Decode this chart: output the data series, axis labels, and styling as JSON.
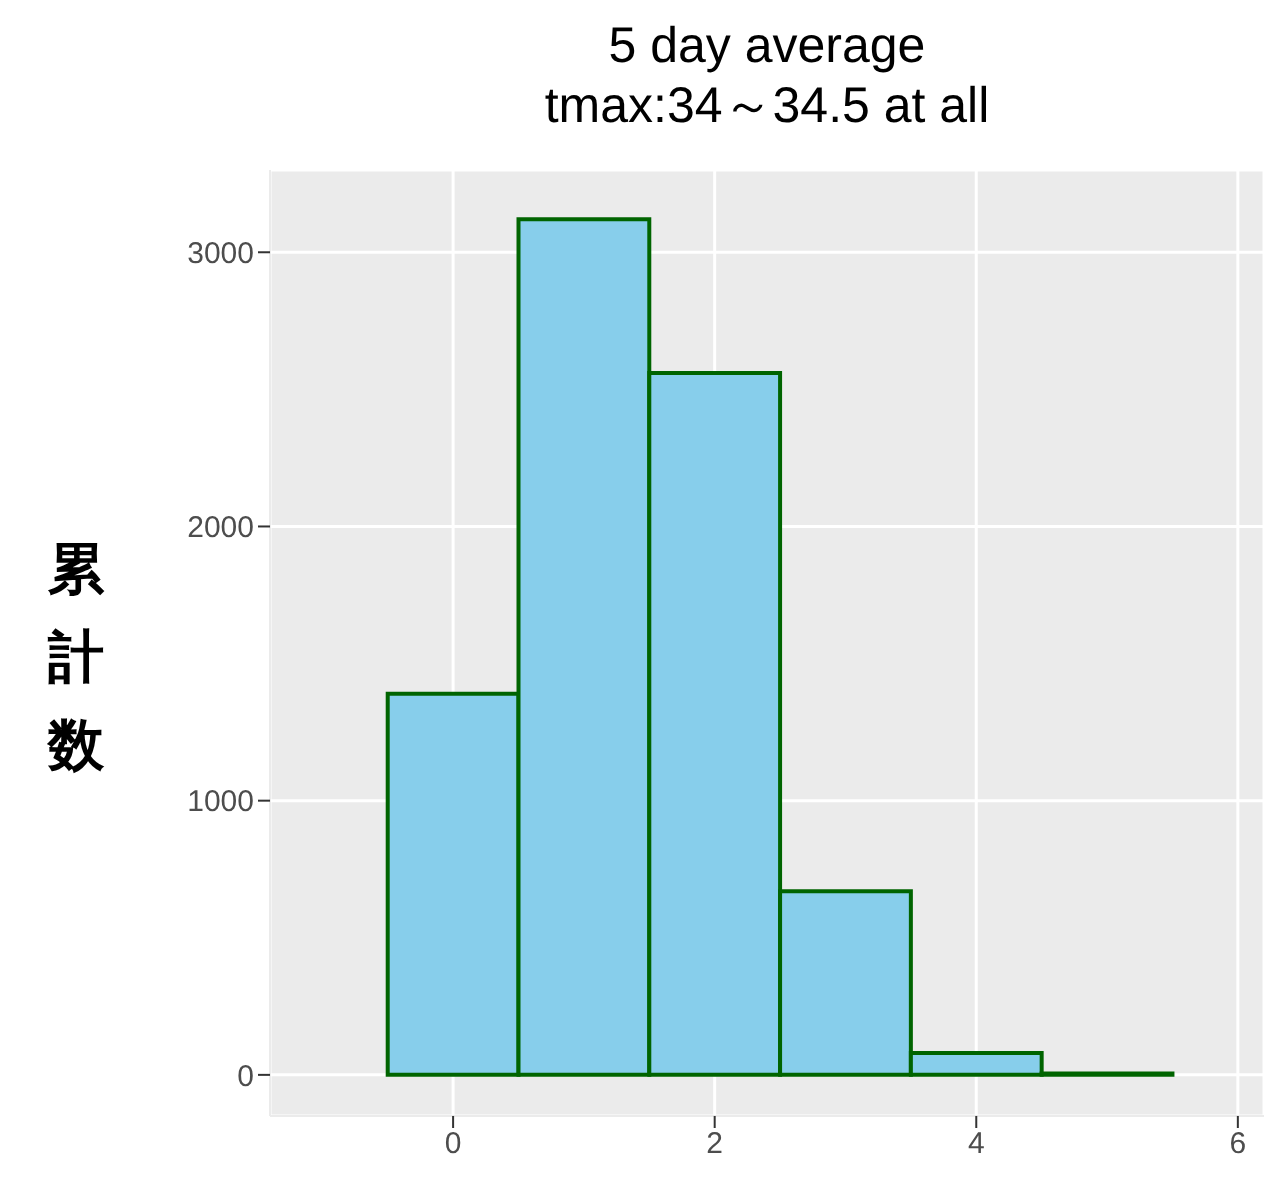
{
  "chart_data": {
    "type": "histogram",
    "title": "5 day average\ntmax:34～34.5 at all",
    "ylabel": "累計数",
    "bins": [
      -0.5,
      0.5,
      1.5,
      2.5,
      3.5,
      4.5,
      5.5
    ],
    "values": [
      1390,
      3120,
      2560,
      670,
      80,
      5
    ],
    "color": "#87ceeb",
    "xlim": [
      -1.4,
      6.2
    ],
    "xticks": [
      0,
      2,
      4,
      6
    ],
    "ylim": [
      -150,
      3300
    ],
    "yticks": [
      0,
      1000,
      2000,
      3000
    ],
    "grid": true
  }
}
